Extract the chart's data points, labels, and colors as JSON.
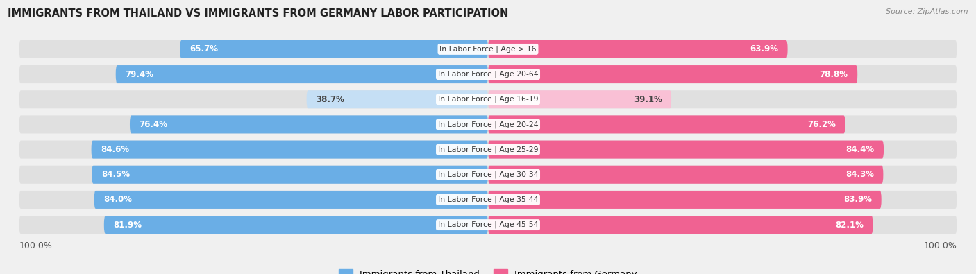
{
  "title": "IMMIGRANTS FROM THAILAND VS IMMIGRANTS FROM GERMANY LABOR PARTICIPATION",
  "source": "Source: ZipAtlas.com",
  "categories": [
    "In Labor Force | Age > 16",
    "In Labor Force | Age 20-64",
    "In Labor Force | Age 16-19",
    "In Labor Force | Age 20-24",
    "In Labor Force | Age 25-29",
    "In Labor Force | Age 30-34",
    "In Labor Force | Age 35-44",
    "In Labor Force | Age 45-54"
  ],
  "thailand_values": [
    65.7,
    79.4,
    38.7,
    76.4,
    84.6,
    84.5,
    84.0,
    81.9
  ],
  "germany_values": [
    63.9,
    78.8,
    39.1,
    76.2,
    84.4,
    84.3,
    83.9,
    82.1
  ],
  "thailand_color": "#6aaee6",
  "thailand_color_light": "#c5dff5",
  "germany_color": "#f06292",
  "germany_color_light": "#f9c0d5",
  "label_thailand": "Immigrants from Thailand",
  "label_germany": "Immigrants from Germany",
  "bg_color": "#f0f0f0",
  "row_bg_color": "#e0e0e0",
  "title_color": "#222222",
  "bar_height": 0.72,
  "max_value": 100.0,
  "figsize": [
    14.06,
    3.95
  ],
  "dpi": 100
}
